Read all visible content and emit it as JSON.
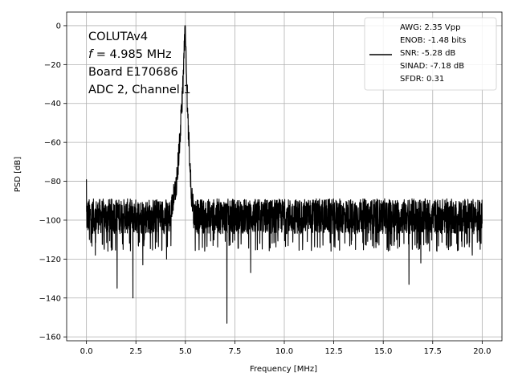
{
  "chart_data": {
    "type": "line",
    "xlabel": "Frequency [MHz]",
    "ylabel": "PSD [dB]",
    "xlim": [
      -1.0,
      21.0
    ],
    "ylim": [
      -162,
      7
    ],
    "xticks": [
      0.0,
      2.5,
      5.0,
      7.5,
      10.0,
      12.5,
      15.0,
      17.5,
      20.0
    ],
    "xtick_labels": [
      "0.0",
      "2.5",
      "5.0",
      "7.5",
      "10.0",
      "12.5",
      "15.0",
      "17.5",
      "20.0"
    ],
    "yticks": [
      0,
      -20,
      -40,
      -60,
      -80,
      -100,
      -120,
      -140,
      -160
    ],
    "ytick_labels": [
      "0",
      "−20",
      "−40",
      "−60",
      "−80",
      "−100",
      "−120",
      "−140",
      "−160"
    ],
    "grid": true,
    "annotation": {
      "lines": [
        {
          "id": "line1",
          "text": "COLUTAv4"
        },
        {
          "id": "line2",
          "italic": "f",
          "text": " = 4.985 MHz"
        },
        {
          "id": "line3",
          "text": "Board E170686"
        },
        {
          "id": "line4",
          "text": "ADC 2, Channel 1"
        }
      ]
    },
    "legend": {
      "placement": "top-right",
      "lines": [
        "AWG: 2.35 Vpp",
        "ENOB: -1.48 bits",
        "SNR: -5.28 dB",
        "SINAD: -7.18 dB",
        "SFDR: 0.31"
      ]
    },
    "series": [
      {
        "color": "#000000",
        "noise_floor_db": -98,
        "noise_band_db": [
          -107,
          -89
        ],
        "peak": {
          "x": 4.985,
          "y": 0
        },
        "peak_skirt": [
          [
            4.3,
            -92
          ],
          [
            4.5,
            -85
          ],
          [
            4.6,
            -75
          ],
          [
            4.7,
            -62
          ],
          [
            4.8,
            -45
          ],
          [
            4.9,
            -25
          ],
          [
            4.95,
            -10
          ],
          [
            4.985,
            0
          ],
          [
            5.03,
            -15
          ],
          [
            5.1,
            -40
          ],
          [
            5.2,
            -65
          ],
          [
            5.3,
            -85
          ],
          [
            5.4,
            -95
          ]
        ],
        "spurs": [
          {
            "x": 0.0,
            "y": -79
          },
          {
            "x": 0.15,
            "y": -110
          },
          {
            "x": 0.45,
            "y": -118
          },
          {
            "x": 0.9,
            "y": -115
          },
          {
            "x": 1.55,
            "y": -135
          },
          {
            "x": 2.35,
            "y": -140
          },
          {
            "x": 2.85,
            "y": -123
          },
          {
            "x": 4.05,
            "y": -120
          },
          {
            "x": 7.1,
            "y": -153
          },
          {
            "x": 8.3,
            "y": -127
          },
          {
            "x": 16.3,
            "y": -133
          },
          {
            "x": 16.9,
            "y": -122
          },
          {
            "x": 19.5,
            "y": -118
          },
          {
            "x": 19.9,
            "y": -115
          }
        ]
      }
    ]
  }
}
